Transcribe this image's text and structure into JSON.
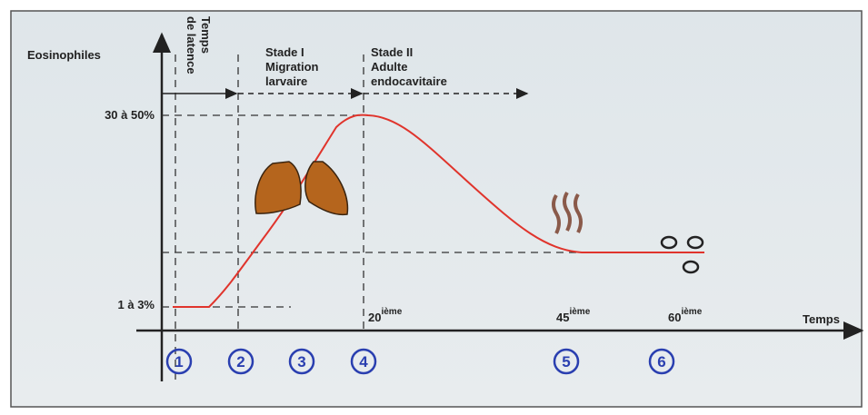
{
  "y_axis": {
    "label": "Eosinophiles",
    "levels": [
      "30 à 50%",
      "1 à 3%"
    ]
  },
  "x_axis": {
    "label": "Temps",
    "days": [
      {
        "number": "20",
        "suffix": "ième"
      },
      {
        "number": "45",
        "suffix": "ième"
      },
      {
        "number": "60",
        "suffix": "ième"
      }
    ]
  },
  "phases": [
    {
      "lines": [
        "Temps",
        "de latence"
      ]
    },
    {
      "lines": [
        "Stade I",
        "Migration",
        "larvaire"
      ]
    },
    {
      "lines": [
        "Stade II",
        "Adulte",
        "endocavitaire"
      ]
    }
  ],
  "steps": [
    "1",
    "2",
    "3",
    "4",
    "5",
    "6"
  ]
}
